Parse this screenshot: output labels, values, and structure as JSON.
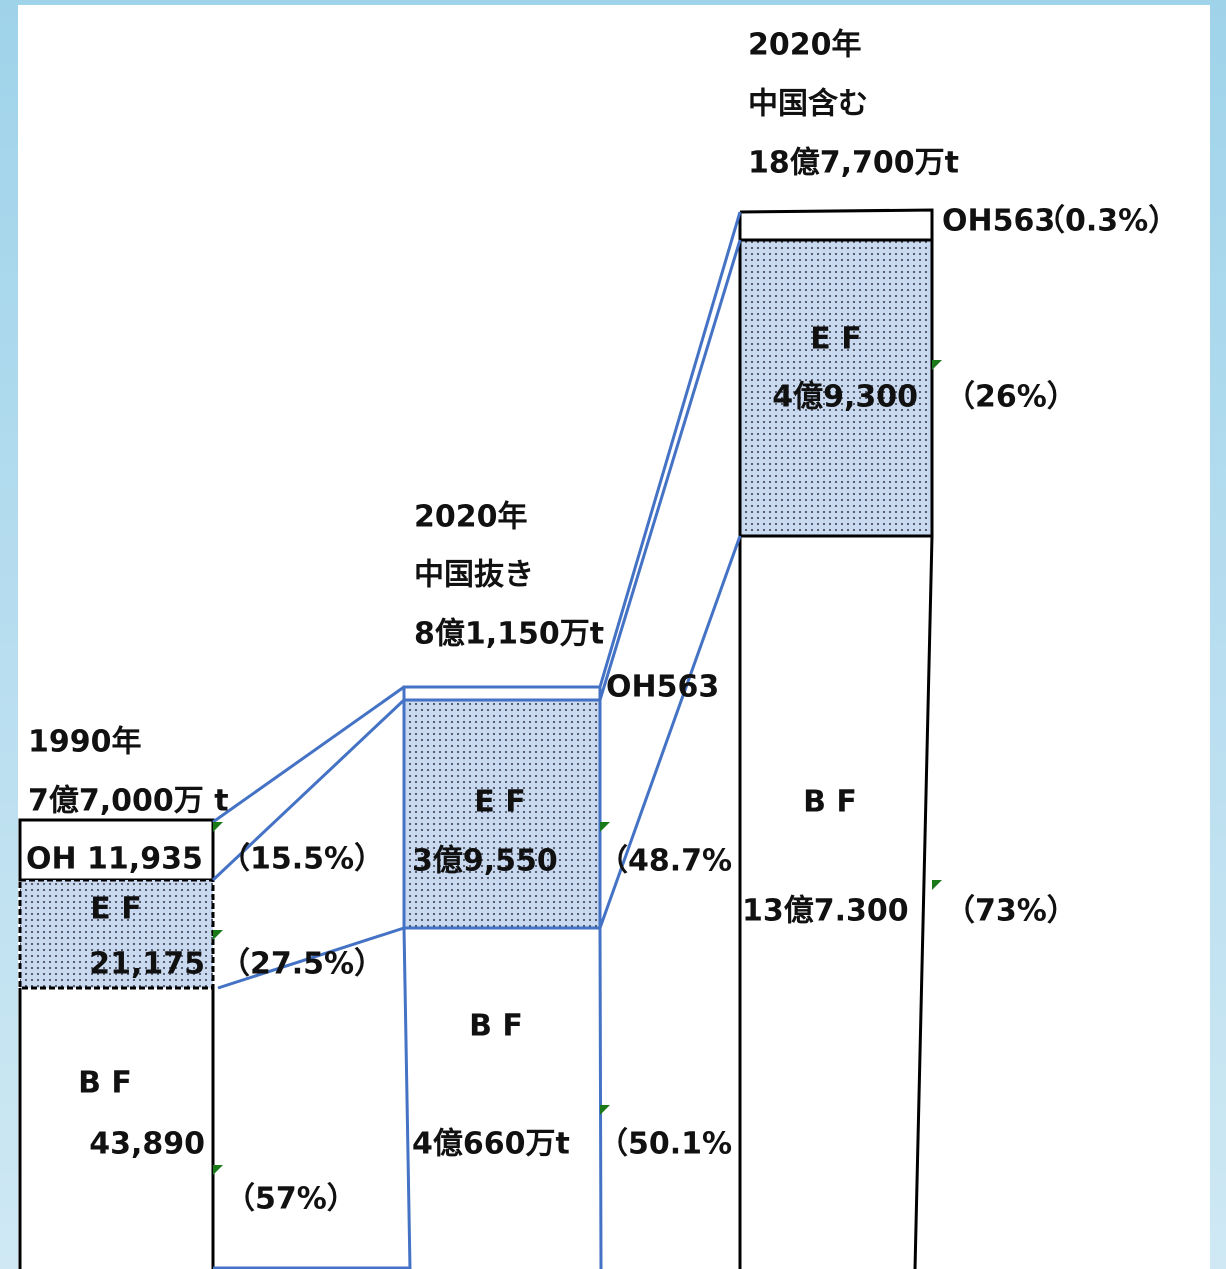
{
  "columns": [
    {
      "title": [
        "1990年",
        "7億7,000万 t"
      ],
      "oh": {
        "label": "OH 11,935",
        "share": "（15.5%）"
      },
      "ef": {
        "label": "E F",
        "amount": "21,175",
        "share": "（27.5%）"
      },
      "bf": {
        "label": "B F",
        "amount": "43,890",
        "share": "（57%）"
      }
    },
    {
      "title": [
        "2020年",
        "中国抜き",
        "8億1,150万t"
      ],
      "oh": {
        "label": "OH563"
      },
      "ef": {
        "label": "E F",
        "amount": "3億9,550",
        "share": "（48.7%"
      },
      "bf": {
        "label": "B F",
        "amount": "4億660万t",
        "share": "（50.1%"
      }
    },
    {
      "title": [
        "2020年",
        "中国含む",
        "18億7,700万t"
      ],
      "oh": {
        "label": "OH563",
        "share": "（0.3%）"
      },
      "ef": {
        "label": "E F",
        "amount": "4億9,300",
        "share": "（26%）"
      },
      "bf": {
        "label": "B F",
        "amount": "13億7.300",
        "share": "（73%）"
      }
    }
  ]
}
